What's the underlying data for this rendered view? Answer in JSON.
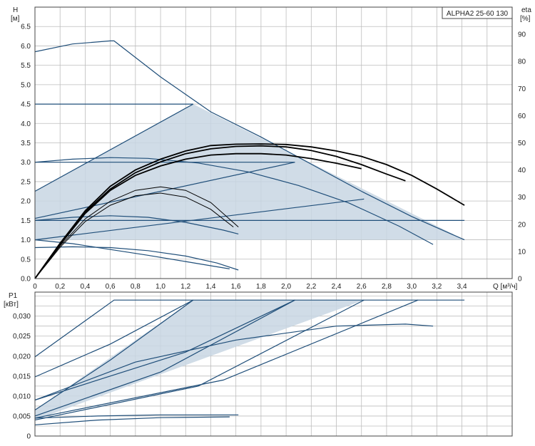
{
  "colors": {
    "curve": "#1f4e79",
    "efficiency": "#000000",
    "fill": "#c8d6e3",
    "grid": "#bdbdbd",
    "frame": "#444444"
  },
  "chart_data": [
    {
      "type": "line",
      "title": "ALPHA2 25-60 130",
      "ylabel_top": "H",
      "ylabel_unit": "[м]",
      "y2label_top": "eta",
      "y2label_unit": "[%]",
      "xlabel": "Q [м³/ч]",
      "xlim": [
        0,
        3.8
      ],
      "ylim": [
        0,
        7.0
      ],
      "y2lim": [
        0,
        100
      ],
      "xticks": [
        "0",
        "0,2",
        "0,4",
        "0,6",
        "0,8",
        "1,0",
        "1,2",
        "1,4",
        "1,6",
        "1,8",
        "2,0",
        "2,2",
        "2,4",
        "2,6",
        "2,8",
        "3,0",
        "3,2",
        "3,4"
      ],
      "yticks": [
        "0.0",
        "0.5",
        "1.0",
        "1.5",
        "2.0",
        "2.5",
        "3.0",
        "3.5",
        "4.0",
        "4.5",
        "5.0",
        "5.5",
        "6.0",
        "6.5"
      ],
      "y2ticks": [
        "0",
        "10",
        "20",
        "30",
        "40",
        "50",
        "60",
        "70",
        "80",
        "90"
      ],
      "grid": true,
      "operating_range": [
        [
          0,
          2.25
        ],
        [
          1.26,
          4.5
        ],
        [
          3.42,
          1.0
        ],
        [
          0,
          1.0
        ]
      ],
      "series": [
        {
          "x": [
            0,
            0.3,
            0.6,
            0.63,
            1.0,
            1.4,
            1.8,
            2.2,
            2.6,
            3.0,
            3.42
          ],
          "y": [
            5.85,
            6.05,
            6.13,
            6.13,
            5.2,
            4.3,
            3.65,
            2.95,
            2.25,
            1.6,
            1.0
          ]
        },
        {
          "x": [
            0,
            1.26
          ],
          "y": [
            4.5,
            4.5
          ]
        },
        {
          "x": [
            0,
            2.07
          ],
          "y": [
            3.0,
            3.0
          ]
        },
        {
          "x": [
            0,
            3.42
          ],
          "y": [
            1.5,
            1.5
          ]
        },
        {
          "x": [
            0,
            1.26
          ],
          "y": [
            2.25,
            4.5
          ]
        },
        {
          "x": [
            0,
            2.07
          ],
          "y": [
            1.55,
            3.0
          ]
        },
        {
          "x": [
            0,
            2.62
          ],
          "y": [
            1.0,
            2.05
          ]
        },
        {
          "x": [
            0,
            0.3,
            0.6,
            0.9,
            1.3,
            1.7,
            2.1,
            2.5,
            2.9,
            3.17
          ],
          "y": [
            3.0,
            3.08,
            3.12,
            3.1,
            2.98,
            2.75,
            2.4,
            1.95,
            1.35,
            0.88
          ]
        },
        {
          "x": [
            0,
            0.3,
            0.6,
            0.9,
            1.2,
            1.5,
            1.62
          ],
          "y": [
            1.5,
            1.58,
            1.62,
            1.58,
            1.45,
            1.25,
            1.15
          ]
        },
        {
          "x": [
            0,
            0.3,
            0.6,
            0.9,
            1.2,
            1.45,
            1.62
          ],
          "y": [
            0.8,
            0.82,
            0.8,
            0.72,
            0.58,
            0.4,
            0.22
          ]
        },
        {
          "x": [
            0,
            0.3,
            0.6,
            0.9,
            1.2,
            1.4,
            1.55
          ],
          "y": [
            1.0,
            0.9,
            0.75,
            0.6,
            0.44,
            0.33,
            0.25
          ]
        }
      ],
      "efficiency_series": [
        {
          "x": [
            0,
            0.2,
            0.4,
            0.6,
            0.8,
            1.0,
            1.2,
            1.4,
            1.6,
            1.8,
            2.0,
            2.2,
            2.4,
            2.6,
            2.8,
            3.0,
            3.2,
            3.42
          ],
          "y": [
            0,
            13,
            25,
            34,
            40,
            44,
            47,
            49,
            49.5,
            49.6,
            49.4,
            48.5,
            47,
            45,
            42,
            38,
            33,
            27
          ]
        },
        {
          "x": [
            0,
            0.2,
            0.4,
            0.6,
            0.8,
            1.0,
            1.2,
            1.4,
            1.6,
            1.8,
            2.0,
            2.2,
            2.4,
            2.6,
            2.8,
            2.95
          ],
          "y": [
            0,
            13,
            24.5,
            33,
            39,
            43,
            46,
            47.8,
            48.7,
            48.9,
            48.5,
            47.2,
            45,
            42,
            38.5,
            36
          ]
        },
        {
          "x": [
            0,
            0.2,
            0.4,
            0.6,
            0.8,
            1.0,
            1.2,
            1.4,
            1.6,
            1.8,
            2.0,
            2.2,
            2.4,
            2.6
          ],
          "y": [
            0,
            12.5,
            24,
            32.5,
            38,
            41.5,
            44,
            45.5,
            46,
            46,
            45.5,
            44.2,
            42.5,
            40.5
          ]
        },
        {
          "x": [
            0,
            0.2,
            0.4,
            0.6,
            0.8,
            1.0,
            1.2,
            1.4,
            1.62
          ],
          "y": [
            0,
            12,
            22,
            28.5,
            32.5,
            33.8,
            32.5,
            28,
            19
          ]
        },
        {
          "x": [
            0,
            0.2,
            0.4,
            0.6,
            0.8,
            1.0,
            1.2,
            1.4,
            1.58
          ],
          "y": [
            0,
            11.5,
            21,
            27,
            30.5,
            31.5,
            30,
            25.5,
            19
          ]
        }
      ]
    },
    {
      "type": "line",
      "ylabel_top": "P1",
      "ylabel_unit": "[кВт]",
      "xlim": [
        0,
        3.8
      ],
      "ylim": [
        0,
        0.036
      ],
      "yticks": [
        "0",
        "0,005",
        "0,010",
        "0,015",
        "0,020",
        "0,025",
        "0,030"
      ],
      "grid": true,
      "operating_range": [
        [
          0,
          0.0065
        ],
        [
          1.26,
          0.034
        ],
        [
          2.62,
          0.034
        ],
        [
          0,
          0.004
        ]
      ],
      "series": [
        {
          "x": [
            0,
            0.63,
            3.42
          ],
          "y": [
            0.0198,
            0.034,
            0.034
          ]
        },
        {
          "x": [
            0,
            0.6,
            1.26
          ],
          "y": [
            0.0148,
            0.023,
            0.034
          ]
        },
        {
          "x": [
            0,
            0.6,
            1.26
          ],
          "y": [
            0.0065,
            0.019,
            0.034
          ]
        },
        {
          "x": [
            0,
            1.2,
            2.07
          ],
          "y": [
            0.009,
            0.021,
            0.034
          ]
        },
        {
          "x": [
            0,
            1.0,
            2.07
          ],
          "y": [
            0.005,
            0.016,
            0.034
          ]
        },
        {
          "x": [
            0,
            1.3,
            2.62
          ],
          "y": [
            0.004,
            0.0125,
            0.034
          ]
        },
        {
          "x": [
            0,
            1.5,
            3.05
          ],
          "y": [
            0.0045,
            0.014,
            0.034
          ]
        },
        {
          "x": [
            0,
            0.8,
            1.6,
            2.4,
            2.95,
            3.17
          ],
          "y": [
            0.009,
            0.0185,
            0.024,
            0.0275,
            0.028,
            0.0275
          ]
        },
        {
          "x": [
            0,
            0.5,
            1.0,
            1.62
          ],
          "y": [
            0.0045,
            0.005,
            0.0053,
            0.0053
          ]
        },
        {
          "x": [
            0,
            0.5,
            1.0,
            1.55
          ],
          "y": [
            0.0028,
            0.004,
            0.0046,
            0.0048
          ]
        }
      ]
    }
  ]
}
